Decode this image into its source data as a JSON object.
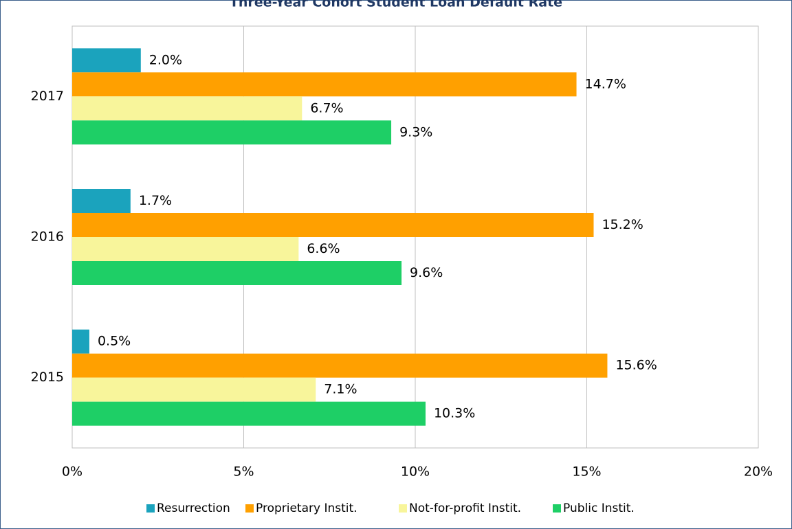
{
  "chart_data": {
    "type": "bar",
    "orientation": "horizontal",
    "title": "Three-Year Cohort Student Loan Default Rate",
    "categories": [
      "2017",
      "2016",
      "2015"
    ],
    "series": [
      {
        "name": "Resurrection",
        "color": "#1ba3bd",
        "values": [
          2.0,
          1.7,
          0.5
        ],
        "value_labels": [
          "2.0%",
          "1.7%",
          "0.5%"
        ]
      },
      {
        "name": "Proprietary Instit.",
        "color": "#ffa000",
        "values": [
          14.7,
          15.2,
          15.6
        ],
        "value_labels": [
          "14.7%",
          "15.2%",
          "15.6%"
        ]
      },
      {
        "name": "Not-for-profit Instit.",
        "color": "#f8f59b",
        "values": [
          6.7,
          6.6,
          7.1
        ],
        "value_labels": [
          "6.7%",
          "6.6%",
          "7.1%"
        ]
      },
      {
        "name": "Public Instit.",
        "color": "#1ecf66",
        "values": [
          9.3,
          9.6,
          10.3
        ],
        "value_labels": [
          "9.3%",
          "9.6%",
          "10.3%"
        ]
      }
    ],
    "xlim": [
      0,
      20
    ],
    "xticks": [
      {
        "value": 0,
        "label": "0%"
      },
      {
        "value": 5,
        "label": "5%"
      },
      {
        "value": 10,
        "label": "10%"
      },
      {
        "value": 15,
        "label": "15%"
      },
      {
        "value": 20,
        "label": "20%"
      }
    ],
    "grid": true,
    "legend": "bottom"
  }
}
